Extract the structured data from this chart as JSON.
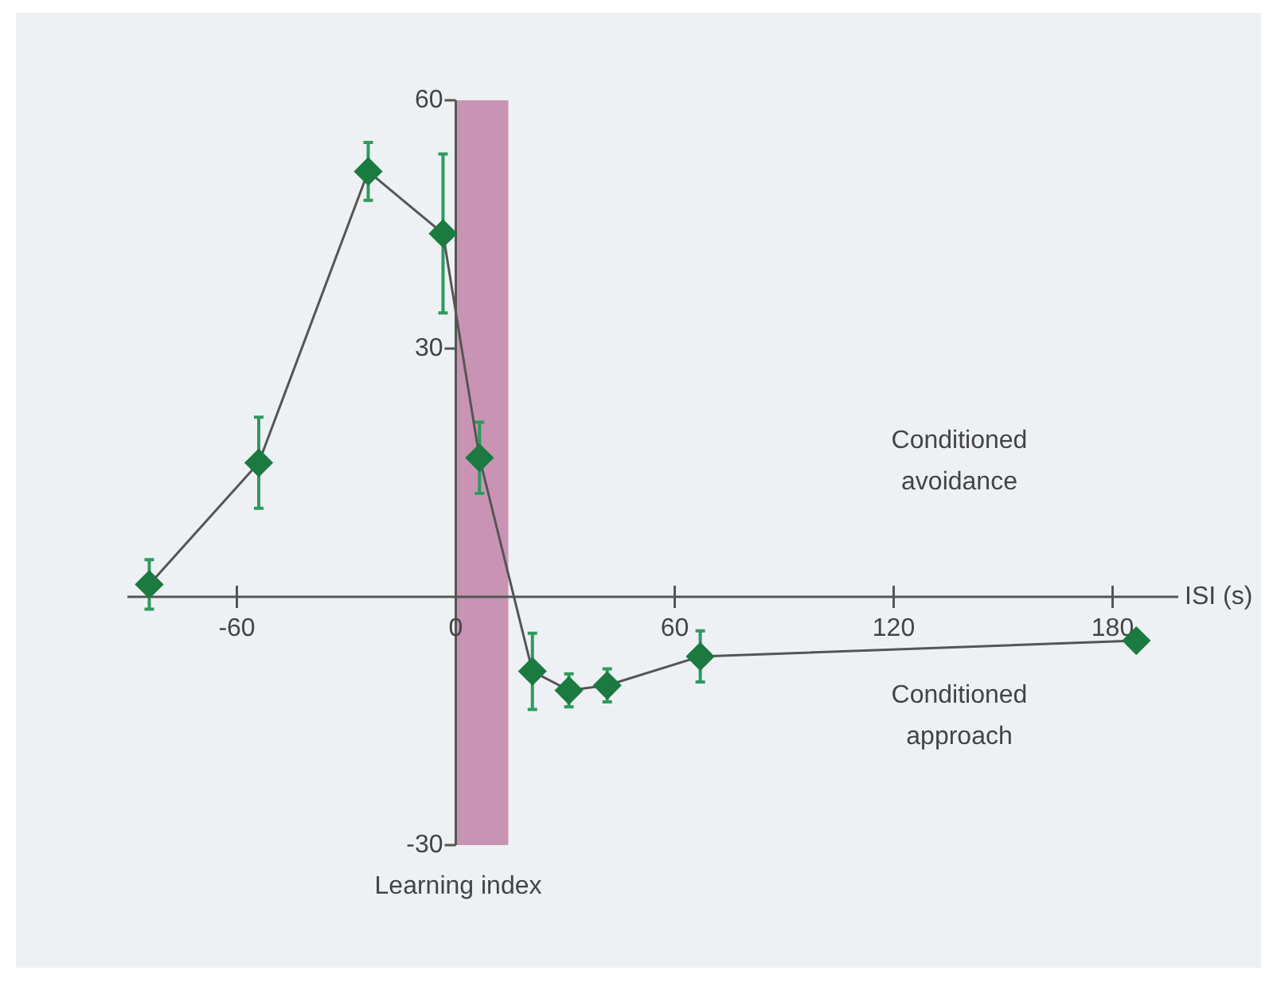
{
  "chart_data": {
    "type": "line",
    "xlabel": "ISI (s)",
    "x": [
      -84,
      -54,
      -24,
      -3.5,
      6.5,
      21,
      31,
      41.5,
      67,
      186.5
    ],
    "series": [
      {
        "color": "#1a7a3f",
        "values": [
          1.5,
          16.2,
          51.4,
          43.9,
          16.8,
          -9.0,
          -11.3,
          -10.7,
          -7.2,
          -5.3
        ],
        "errors": [
          3,
          5.5,
          3.5,
          9.6,
          4.3,
          4.6,
          2,
          2,
          3.1,
          null
        ]
      }
    ],
    "xlim": [
      -90,
      198
    ],
    "xticks": [
      -60,
      0,
      60,
      120,
      180
    ],
    "ylim": [
      -30,
      60
    ],
    "yticks": [
      -30,
      30,
      60
    ],
    "bands": [
      {
        "axis": "x",
        "from": 0,
        "to": 14.4,
        "label": "Learning index",
        "color": "#c994b4"
      }
    ],
    "annotations": [
      "Conditioned avoidance",
      "Conditioned approach"
    ],
    "marker": "diamond",
    "line_style": "solid",
    "grid": false,
    "legend": false
  }
}
